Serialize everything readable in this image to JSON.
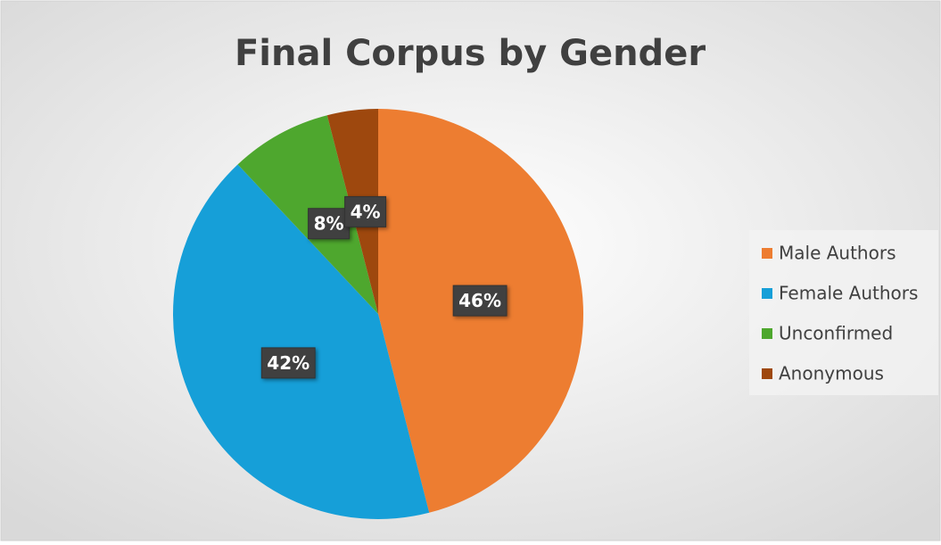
{
  "chart_data": {
    "type": "pie",
    "title": "Final Corpus by Gender",
    "categories": [
      "Male Authors",
      "Female Authors",
      "Unconfirmed",
      "Anonymous"
    ],
    "values": [
      46,
      42,
      8,
      4
    ],
    "value_labels": [
      "46%",
      "42%",
      "8%",
      "4%"
    ],
    "colors": [
      "#ED7D31",
      "#169FD8",
      "#4EA72E",
      "#9E480E"
    ],
    "legend": "right"
  }
}
